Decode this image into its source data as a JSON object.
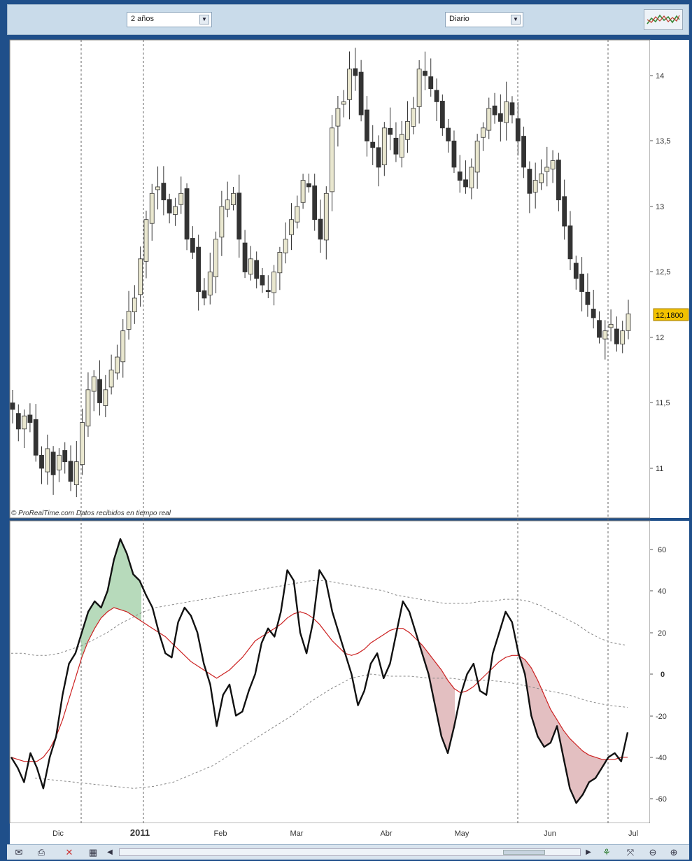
{
  "toolbar": {
    "period_select": "2 años",
    "interval_select": "Diario",
    "chart_type_icon": "chart-type-icon"
  },
  "watermark": "© ProRealTime.com  Datos recibidos en tiempo real",
  "price_label": "12,1800",
  "x_labels": [
    "Dic",
    "2011",
    "Feb",
    "Mar",
    "Abr",
    "May",
    "Jun",
    "Jul"
  ],
  "price_axis_labels": [
    "14",
    "13,5",
    "13",
    "12,5",
    "12",
    "11,5",
    "11"
  ],
  "osc_axis_labels": [
    "60",
    "40",
    "20",
    "0",
    "-20",
    "-40",
    "-60"
  ],
  "colors": {
    "bull_candle": "#e9e7cf",
    "bear_candle": "#333333",
    "oscillator": "#111111",
    "signal": "#cc2222",
    "band": "#888888",
    "fill_positive": "#9fcda4",
    "fill_negative": "#d9a9ac",
    "price_tag": "#f2c200"
  },
  "statusbar_icons": [
    "mail-icon",
    "print-icon",
    "delete-icon",
    "calculator-icon",
    "scroll-left-icon",
    "scroll-right-icon",
    "indicator-icon",
    "zoom-fit-icon",
    "zoom-out-icon",
    "zoom-in-icon"
  ],
  "chart_data": [
    {
      "type": "candlestick",
      "x_range": [
        "2010-11-15",
        "2011-06-28"
      ],
      "ylim": [
        10.75,
        14.2
      ],
      "legend": "none",
      "grid": false,
      "last_price": 12.18,
      "close": [
        11.45,
        11.3,
        11.4,
        11.35,
        11.1,
        11.0,
        11.15,
        10.95,
        11.1,
        11.05,
        10.9,
        11.05,
        11.35,
        11.6,
        11.7,
        11.5,
        11.6,
        11.75,
        11.85,
        12.05,
        12.2,
        12.3,
        12.6,
        12.9,
        13.1,
        13.15,
        13.05,
        12.95,
        13.0,
        13.1,
        12.75,
        12.65,
        12.35,
        12.3,
        12.5,
        12.75,
        13.0,
        13.05,
        13.1,
        12.75,
        12.5,
        12.6,
        12.45,
        12.4,
        12.35,
        12.5,
        12.65,
        12.75,
        12.9,
        13.0,
        13.2,
        13.15,
        12.9,
        12.75,
        13.1,
        13.6,
        13.75,
        13.8,
        14.05,
        14.0,
        13.7,
        13.5,
        13.45,
        13.3,
        13.6,
        13.55,
        13.4,
        13.55,
        13.65,
        13.75,
        14.05,
        14.0,
        13.9,
        13.8,
        13.6,
        13.5,
        13.3,
        13.2,
        13.15,
        13.3,
        13.5,
        13.6,
        13.75,
        13.7,
        13.65,
        13.8,
        13.7,
        13.5,
        13.3,
        13.1,
        13.2,
        13.25,
        13.3,
        13.35,
        13.05,
        12.85,
        12.6,
        12.45,
        12.35,
        12.25,
        12.15,
        12.0,
        12.05,
        12.1,
        11.95,
        12.05,
        12.18
      ]
    },
    {
      "type": "line",
      "ylim": [
        -70,
        70
      ],
      "grid": false,
      "legend": "none",
      "series": [
        {
          "values": [
            -40,
            -45,
            -52,
            -38,
            -45,
            -55,
            -40,
            -30,
            -10,
            5,
            10,
            20,
            30,
            35,
            32,
            40,
            55,
            65,
            58,
            48,
            45,
            38,
            32,
            20,
            10,
            8,
            25,
            32,
            28,
            20,
            5,
            -5,
            -25,
            -10,
            -5,
            -20,
            -18,
            -8,
            0,
            15,
            22,
            18,
            30,
            50,
            45,
            20,
            10,
            25,
            50,
            45,
            30,
            20,
            10,
            0,
            -15,
            -8,
            5,
            10,
            -2,
            5,
            20,
            35,
            30,
            20,
            10,
            0,
            -15,
            -30,
            -38,
            -25,
            -10,
            0,
            5,
            -8,
            -10,
            10,
            20,
            30,
            25,
            10,
            0,
            -20,
            -30,
            -35,
            -33,
            -25,
            -40,
            -55,
            -62,
            -58,
            -52,
            -50,
            -45,
            -40,
            -38,
            -42,
            -28
          ]
        },
        {
          "values": [
            -40,
            -41,
            -42,
            -42,
            -42,
            -40,
            -36,
            -30,
            -22,
            -12,
            -2,
            8,
            16,
            22,
            27,
            30,
            32,
            31,
            30,
            28,
            26,
            24,
            22,
            20,
            18,
            15,
            12,
            9,
            6,
            4,
            2,
            0,
            -2,
            0,
            2,
            5,
            8,
            12,
            16,
            18,
            20,
            22,
            24,
            27,
            29,
            30,
            29,
            27,
            24,
            20,
            16,
            13,
            10,
            9,
            10,
            12,
            15,
            17,
            19,
            21,
            22,
            22,
            20,
            17,
            14,
            10,
            6,
            2,
            -3,
            -7,
            -9,
            -8,
            -6,
            -3,
            0,
            3,
            6,
            8,
            9,
            9,
            7,
            3,
            -3,
            -10,
            -17,
            -22,
            -27,
            -31,
            -34,
            -37,
            -39,
            -40,
            -41,
            -41,
            -41,
            -40,
            -40
          ]
        },
        {
          "values": [
            10,
            10,
            9,
            9,
            10,
            12,
            14,
            17,
            20,
            24,
            27,
            30,
            32,
            33,
            34,
            35,
            36,
            37,
            38,
            39,
            40,
            41,
            42,
            43,
            44,
            45,
            45,
            44,
            43,
            42,
            41,
            40,
            38,
            37,
            36,
            35,
            34,
            34,
            34,
            35,
            35,
            36,
            36,
            35,
            33,
            30,
            27,
            24,
            20,
            17,
            15,
            14
          ]
        },
        {
          "values": [
            -50,
            -51,
            -52,
            -53,
            -54,
            -55,
            -54,
            -52,
            -48,
            -44,
            -38,
            -32,
            -26,
            -20,
            -13,
            -7,
            -2,
            0,
            -1,
            -1,
            -2,
            -2,
            -3,
            -3,
            -4,
            -6,
            -8,
            -10,
            -13,
            -15,
            -16
          ]
        }
      ]
    }
  ]
}
